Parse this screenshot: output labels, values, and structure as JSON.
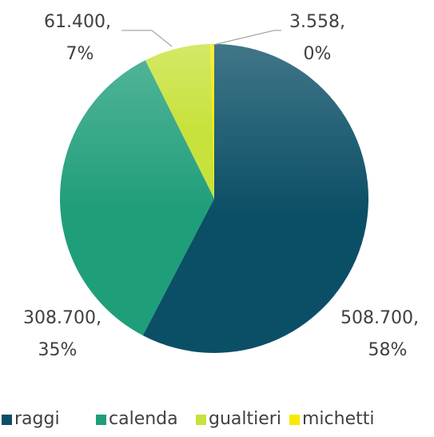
{
  "chart_data": {
    "type": "pie",
    "categories": [
      "raggi",
      "calenda",
      "gualtieri",
      "michetti"
    ],
    "values": [
      508700,
      308700,
      61400,
      3558
    ],
    "value_labels": [
      "508.700,",
      "308.700,",
      "61.400,",
      "3.558,"
    ],
    "percent_labels": [
      "58%",
      "35%",
      "7%",
      "0%"
    ],
    "colors": [
      "#0b4f66",
      "#1f9e7a",
      "#c8e23c",
      "#f7ea00"
    ],
    "legend": "bottom"
  }
}
